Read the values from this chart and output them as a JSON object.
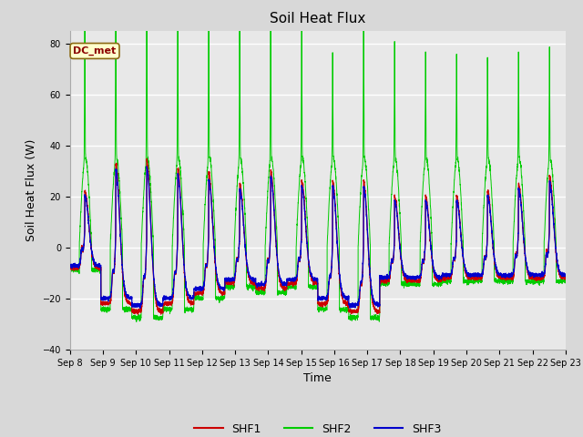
{
  "title": "Soil Heat Flux",
  "xlabel": "Time",
  "ylabel": "Soil Heat Flux (W)",
  "ylim": [
    -40,
    85
  ],
  "yticks": [
    -40,
    -20,
    0,
    20,
    40,
    60,
    80
  ],
  "date_start": 8,
  "date_end": 23,
  "annotation": "DC_met",
  "fig_bg": "#d8d8d8",
  "plot_bg": "#e8e8e8",
  "shf1_color": "#cc0000",
  "shf2_color": "#00cc00",
  "shf3_color": "#0000cc",
  "legend_labels": [
    "SHF1",
    "SHF2",
    "SHF3"
  ],
  "n_days": 16,
  "points_per_day": 288,
  "grid_color": "#ffffff",
  "tick_fontsize": 7,
  "title_fontsize": 11
}
